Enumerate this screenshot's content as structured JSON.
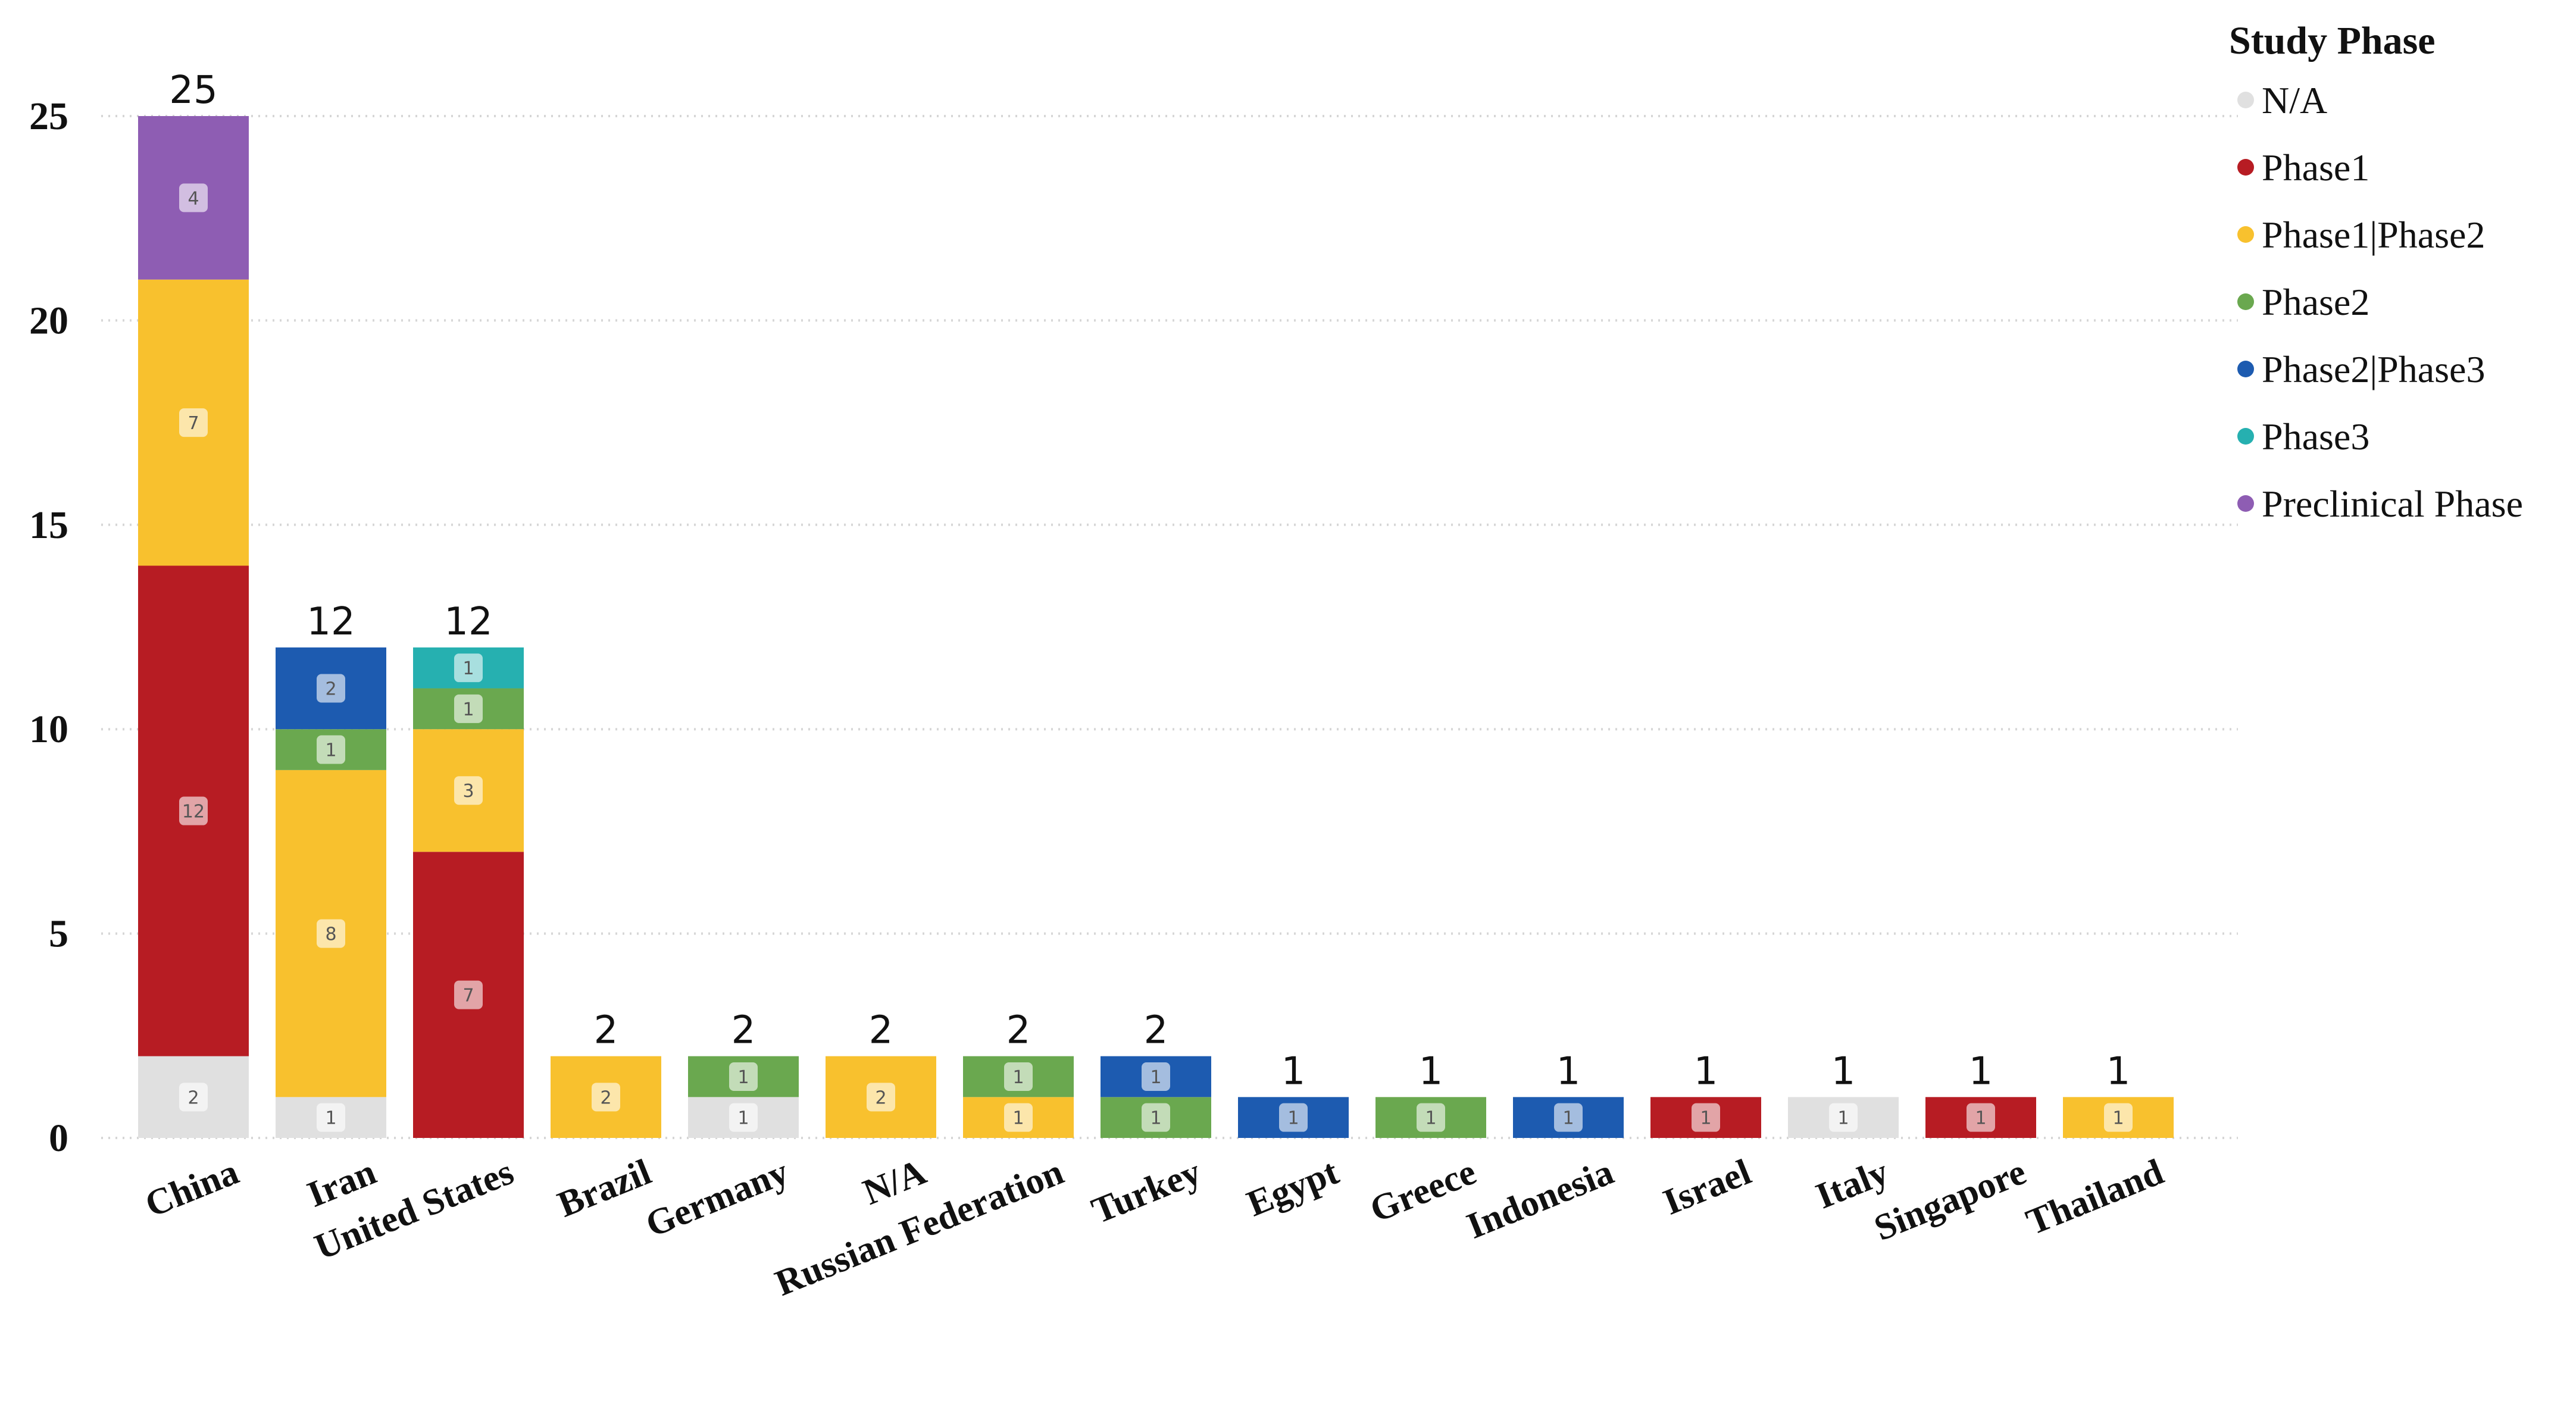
{
  "chart_data": {
    "type": "bar",
    "stacked": true,
    "categories": [
      "China",
      "Iran",
      "United States",
      "Brazil",
      "Germany",
      "N/A",
      "Russian Federation",
      "Turkey",
      "Egypt",
      "Greece",
      "Indonesia",
      "Israel",
      "Italy",
      "Singapore",
      "Thailand"
    ],
    "series": [
      {
        "name": "N/A",
        "color": "#e0e0e0",
        "values": [
          2,
          1,
          0,
          0,
          1,
          0,
          0,
          0,
          0,
          0,
          0,
          0,
          1,
          0,
          0
        ]
      },
      {
        "name": "Phase1",
        "color": "#b71c23",
        "values": [
          12,
          0,
          7,
          0,
          0,
          0,
          0,
          0,
          0,
          0,
          0,
          1,
          0,
          1,
          0
        ]
      },
      {
        "name": "Phase1|Phase2",
        "color": "#f8c12e",
        "values": [
          7,
          8,
          3,
          2,
          0,
          2,
          1,
          0,
          0,
          0,
          0,
          0,
          0,
          0,
          1
        ]
      },
      {
        "name": "Phase2",
        "color": "#6aa84f",
        "values": [
          0,
          1,
          1,
          0,
          1,
          0,
          1,
          1,
          0,
          1,
          0,
          0,
          0,
          0,
          0
        ]
      },
      {
        "name": "Phase2|Phase3",
        "color": "#1d5bb0",
        "values": [
          0,
          2,
          0,
          0,
          0,
          0,
          0,
          1,
          1,
          0,
          1,
          0,
          0,
          0,
          0
        ]
      },
      {
        "name": "Phase3",
        "color": "#26b0b0",
        "values": [
          0,
          0,
          1,
          0,
          0,
          0,
          0,
          0,
          0,
          0,
          0,
          0,
          0,
          0,
          0
        ]
      },
      {
        "name": "Preclinical Phase",
        "color": "#8e5db3",
        "values": [
          4,
          0,
          0,
          0,
          0,
          0,
          0,
          0,
          0,
          0,
          0,
          0,
          0,
          0,
          0
        ]
      }
    ],
    "totals": [
      25,
      12,
      12,
      2,
      2,
      2,
      2,
      2,
      1,
      1,
      1,
      1,
      1,
      1,
      1
    ],
    "yticks": [
      0,
      5,
      10,
      15,
      20,
      25
    ],
    "ylim": [
      0,
      25
    ],
    "grid": "horizontal dotted",
    "legend": {
      "title": "Study Phase",
      "placement": "top-right"
    }
  }
}
